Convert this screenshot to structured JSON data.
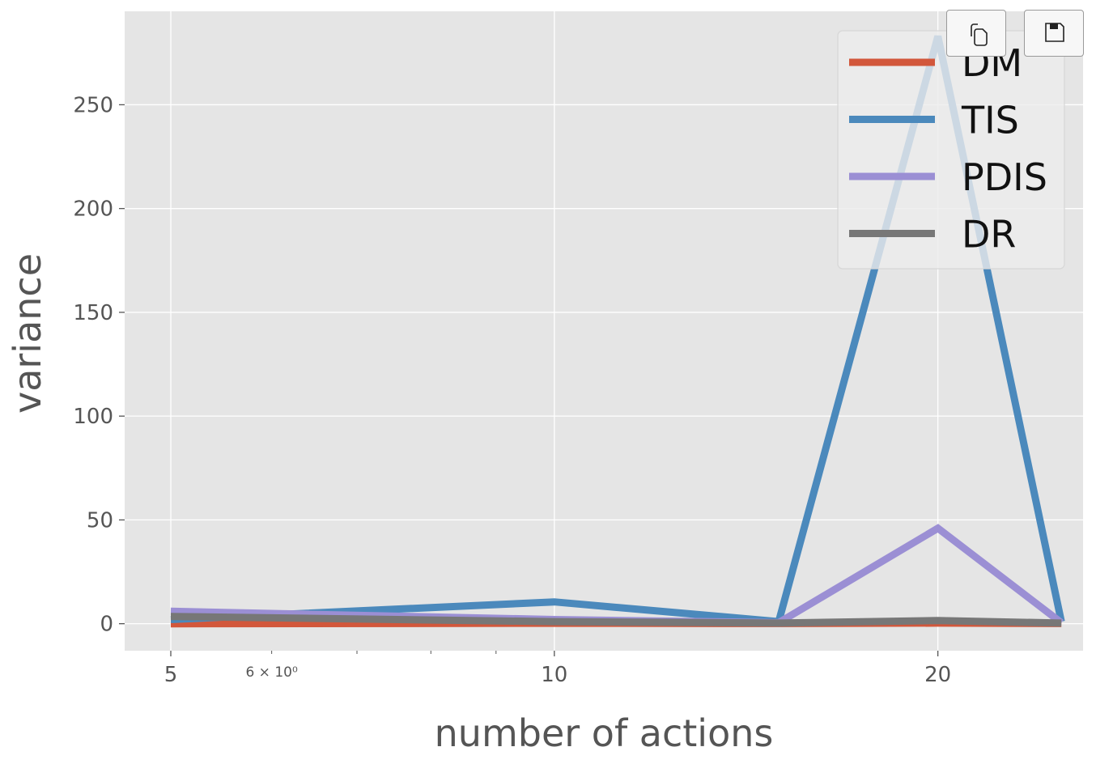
{
  "toolbar": {
    "buttons": [
      {
        "icon": "copy-icon"
      },
      {
        "icon": "save-icon"
      }
    ]
  },
  "chart_data": {
    "type": "line",
    "title": "",
    "xlabel": "number of actions",
    "ylabel": "variance",
    "xscale": "log",
    "x": [
      5,
      10,
      15,
      20,
      25
    ],
    "xticks": [
      5,
      10,
      20
    ],
    "xtick_labels": [
      "5",
      "10",
      "20"
    ],
    "minor_tick_label": "6 × 10⁰",
    "yticks": [
      0,
      50,
      100,
      150,
      200,
      250
    ],
    "xlim": [
      4.6,
      26.0
    ],
    "ylim": [
      -13,
      295
    ],
    "grid": true,
    "legend_position": "top-right",
    "series": [
      {
        "name": "DM",
        "color": "#d2573b",
        "values": [
          0.0,
          0.2,
          0.1,
          0.3,
          0.1
        ]
      },
      {
        "name": "TIS",
        "color": "#4b89bc",
        "values": [
          2.0,
          10.5,
          1.0,
          283.0,
          1.0
        ]
      },
      {
        "name": "PDIS",
        "color": "#9b8fd4",
        "values": [
          6.0,
          2.0,
          0.5,
          46.0,
          0.5
        ]
      },
      {
        "name": "DR",
        "color": "#777777",
        "values": [
          3.5,
          1.0,
          0.3,
          1.5,
          0.3
        ]
      }
    ]
  }
}
